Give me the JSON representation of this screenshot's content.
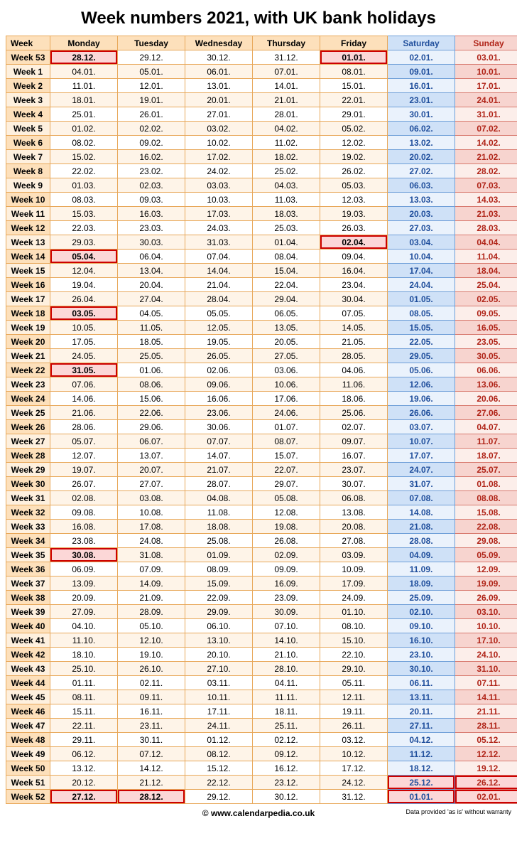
{
  "title": "Week numbers 2021, with UK bank holidays",
  "footer_copy": "© www.calendarpedia.co.uk",
  "footer_disclaimer": "Data provided 'as is' without warranty",
  "colors": {
    "border_default": "#e8a85a",
    "border_sat": "#6f9fd8",
    "border_sun": "#d87a6f",
    "header_weeklabel_bg": "#fde0bb",
    "header_weeklabel_fg": "#000000",
    "header_weekday_bg": "#fde0bb",
    "header_weekday_fg": "#000000",
    "header_sat_bg": "#cfe1f7",
    "header_sat_fg": "#1f4e9c",
    "header_sun_bg": "#f7d4cf",
    "header_sun_fg": "#b02418",
    "row_odd_week_bg": "#fde0bb",
    "row_even_week_bg": "#fef0de",
    "row_odd_day_bg": "#ffffff",
    "row_even_day_bg": "#fef4e8",
    "row_odd_sat_bg": "#eaf2fc",
    "row_even_sat_bg": "#cfe1f7",
    "row_odd_sun_bg": "#fceeea",
    "row_even_sun_bg": "#f7d4cf",
    "weekday_fg": "#000000",
    "sat_fg": "#1f4e9c",
    "sun_fg": "#b02418",
    "holiday_bg": "#fcd7d7",
    "holiday_border": "#cc0000"
  },
  "columns": [
    {
      "key": "week",
      "label": "Week"
    },
    {
      "key": "mon",
      "label": "Monday"
    },
    {
      "key": "tue",
      "label": "Tuesday"
    },
    {
      "key": "wed",
      "label": "Wednesday"
    },
    {
      "key": "thu",
      "label": "Thursday"
    },
    {
      "key": "fri",
      "label": "Friday"
    },
    {
      "key": "sat",
      "label": "Saturday"
    },
    {
      "key": "sun",
      "label": "Sunday"
    }
  ],
  "rows": [
    {
      "week": "Week 53",
      "days": [
        "28.12.",
        "29.12.",
        "30.12.",
        "31.12.",
        "01.01.",
        "02.01.",
        "03.01."
      ],
      "holidays": [
        0,
        4
      ]
    },
    {
      "week": "Week 1",
      "days": [
        "04.01.",
        "05.01.",
        "06.01.",
        "07.01.",
        "08.01.",
        "09.01.",
        "10.01."
      ],
      "holidays": []
    },
    {
      "week": "Week 2",
      "days": [
        "11.01.",
        "12.01.",
        "13.01.",
        "14.01.",
        "15.01.",
        "16.01.",
        "17.01."
      ],
      "holidays": []
    },
    {
      "week": "Week 3",
      "days": [
        "18.01.",
        "19.01.",
        "20.01.",
        "21.01.",
        "22.01.",
        "23.01.",
        "24.01."
      ],
      "holidays": []
    },
    {
      "week": "Week 4",
      "days": [
        "25.01.",
        "26.01.",
        "27.01.",
        "28.01.",
        "29.01.",
        "30.01.",
        "31.01."
      ],
      "holidays": []
    },
    {
      "week": "Week 5",
      "days": [
        "01.02.",
        "02.02.",
        "03.02.",
        "04.02.",
        "05.02.",
        "06.02.",
        "07.02."
      ],
      "holidays": []
    },
    {
      "week": "Week 6",
      "days": [
        "08.02.",
        "09.02.",
        "10.02.",
        "11.02.",
        "12.02.",
        "13.02.",
        "14.02."
      ],
      "holidays": []
    },
    {
      "week": "Week 7",
      "days": [
        "15.02.",
        "16.02.",
        "17.02.",
        "18.02.",
        "19.02.",
        "20.02.",
        "21.02."
      ],
      "holidays": []
    },
    {
      "week": "Week 8",
      "days": [
        "22.02.",
        "23.02.",
        "24.02.",
        "25.02.",
        "26.02.",
        "27.02.",
        "28.02."
      ],
      "holidays": []
    },
    {
      "week": "Week 9",
      "days": [
        "01.03.",
        "02.03.",
        "03.03.",
        "04.03.",
        "05.03.",
        "06.03.",
        "07.03."
      ],
      "holidays": []
    },
    {
      "week": "Week 10",
      "days": [
        "08.03.",
        "09.03.",
        "10.03.",
        "11.03.",
        "12.03.",
        "13.03.",
        "14.03."
      ],
      "holidays": []
    },
    {
      "week": "Week 11",
      "days": [
        "15.03.",
        "16.03.",
        "17.03.",
        "18.03.",
        "19.03.",
        "20.03.",
        "21.03."
      ],
      "holidays": []
    },
    {
      "week": "Week 12",
      "days": [
        "22.03.",
        "23.03.",
        "24.03.",
        "25.03.",
        "26.03.",
        "27.03.",
        "28.03."
      ],
      "holidays": []
    },
    {
      "week": "Week 13",
      "days": [
        "29.03.",
        "30.03.",
        "31.03.",
        "01.04.",
        "02.04.",
        "03.04.",
        "04.04."
      ],
      "holidays": [
        4
      ]
    },
    {
      "week": "Week 14",
      "days": [
        "05.04.",
        "06.04.",
        "07.04.",
        "08.04.",
        "09.04.",
        "10.04.",
        "11.04."
      ],
      "holidays": [
        0
      ]
    },
    {
      "week": "Week 15",
      "days": [
        "12.04.",
        "13.04.",
        "14.04.",
        "15.04.",
        "16.04.",
        "17.04.",
        "18.04."
      ],
      "holidays": []
    },
    {
      "week": "Week 16",
      "days": [
        "19.04.",
        "20.04.",
        "21.04.",
        "22.04.",
        "23.04.",
        "24.04.",
        "25.04."
      ],
      "holidays": []
    },
    {
      "week": "Week 17",
      "days": [
        "26.04.",
        "27.04.",
        "28.04.",
        "29.04.",
        "30.04.",
        "01.05.",
        "02.05."
      ],
      "holidays": []
    },
    {
      "week": "Week 18",
      "days": [
        "03.05.",
        "04.05.",
        "05.05.",
        "06.05.",
        "07.05.",
        "08.05.",
        "09.05."
      ],
      "holidays": [
        0
      ]
    },
    {
      "week": "Week 19",
      "days": [
        "10.05.",
        "11.05.",
        "12.05.",
        "13.05.",
        "14.05.",
        "15.05.",
        "16.05."
      ],
      "holidays": []
    },
    {
      "week": "Week 20",
      "days": [
        "17.05.",
        "18.05.",
        "19.05.",
        "20.05.",
        "21.05.",
        "22.05.",
        "23.05."
      ],
      "holidays": []
    },
    {
      "week": "Week 21",
      "days": [
        "24.05.",
        "25.05.",
        "26.05.",
        "27.05.",
        "28.05.",
        "29.05.",
        "30.05."
      ],
      "holidays": []
    },
    {
      "week": "Week 22",
      "days": [
        "31.05.",
        "01.06.",
        "02.06.",
        "03.06.",
        "04.06.",
        "05.06.",
        "06.06."
      ],
      "holidays": [
        0
      ]
    },
    {
      "week": "Week 23",
      "days": [
        "07.06.",
        "08.06.",
        "09.06.",
        "10.06.",
        "11.06.",
        "12.06.",
        "13.06."
      ],
      "holidays": []
    },
    {
      "week": "Week 24",
      "days": [
        "14.06.",
        "15.06.",
        "16.06.",
        "17.06.",
        "18.06.",
        "19.06.",
        "20.06."
      ],
      "holidays": []
    },
    {
      "week": "Week 25",
      "days": [
        "21.06.",
        "22.06.",
        "23.06.",
        "24.06.",
        "25.06.",
        "26.06.",
        "27.06."
      ],
      "holidays": []
    },
    {
      "week": "Week 26",
      "days": [
        "28.06.",
        "29.06.",
        "30.06.",
        "01.07.",
        "02.07.",
        "03.07.",
        "04.07."
      ],
      "holidays": []
    },
    {
      "week": "Week 27",
      "days": [
        "05.07.",
        "06.07.",
        "07.07.",
        "08.07.",
        "09.07.",
        "10.07.",
        "11.07."
      ],
      "holidays": []
    },
    {
      "week": "Week 28",
      "days": [
        "12.07.",
        "13.07.",
        "14.07.",
        "15.07.",
        "16.07.",
        "17.07.",
        "18.07."
      ],
      "holidays": []
    },
    {
      "week": "Week 29",
      "days": [
        "19.07.",
        "20.07.",
        "21.07.",
        "22.07.",
        "23.07.",
        "24.07.",
        "25.07."
      ],
      "holidays": []
    },
    {
      "week": "Week 30",
      "days": [
        "26.07.",
        "27.07.",
        "28.07.",
        "29.07.",
        "30.07.",
        "31.07.",
        "01.08."
      ],
      "holidays": []
    },
    {
      "week": "Week 31",
      "days": [
        "02.08.",
        "03.08.",
        "04.08.",
        "05.08.",
        "06.08.",
        "07.08.",
        "08.08."
      ],
      "holidays": []
    },
    {
      "week": "Week 32",
      "days": [
        "09.08.",
        "10.08.",
        "11.08.",
        "12.08.",
        "13.08.",
        "14.08.",
        "15.08."
      ],
      "holidays": []
    },
    {
      "week": "Week 33",
      "days": [
        "16.08.",
        "17.08.",
        "18.08.",
        "19.08.",
        "20.08.",
        "21.08.",
        "22.08."
      ],
      "holidays": []
    },
    {
      "week": "Week 34",
      "days": [
        "23.08.",
        "24.08.",
        "25.08.",
        "26.08.",
        "27.08.",
        "28.08.",
        "29.08."
      ],
      "holidays": []
    },
    {
      "week": "Week 35",
      "days": [
        "30.08.",
        "31.08.",
        "01.09.",
        "02.09.",
        "03.09.",
        "04.09.",
        "05.09."
      ],
      "holidays": [
        0
      ]
    },
    {
      "week": "Week 36",
      "days": [
        "06.09.",
        "07.09.",
        "08.09.",
        "09.09.",
        "10.09.",
        "11.09.",
        "12.09."
      ],
      "holidays": []
    },
    {
      "week": "Week 37",
      "days": [
        "13.09.",
        "14.09.",
        "15.09.",
        "16.09.",
        "17.09.",
        "18.09.",
        "19.09."
      ],
      "holidays": []
    },
    {
      "week": "Week 38",
      "days": [
        "20.09.",
        "21.09.",
        "22.09.",
        "23.09.",
        "24.09.",
        "25.09.",
        "26.09."
      ],
      "holidays": []
    },
    {
      "week": "Week 39",
      "days": [
        "27.09.",
        "28.09.",
        "29.09.",
        "30.09.",
        "01.10.",
        "02.10.",
        "03.10."
      ],
      "holidays": []
    },
    {
      "week": "Week 40",
      "days": [
        "04.10.",
        "05.10.",
        "06.10.",
        "07.10.",
        "08.10.",
        "09.10.",
        "10.10."
      ],
      "holidays": []
    },
    {
      "week": "Week 41",
      "days": [
        "11.10.",
        "12.10.",
        "13.10.",
        "14.10.",
        "15.10.",
        "16.10.",
        "17.10."
      ],
      "holidays": []
    },
    {
      "week": "Week 42",
      "days": [
        "18.10.",
        "19.10.",
        "20.10.",
        "21.10.",
        "22.10.",
        "23.10.",
        "24.10."
      ],
      "holidays": []
    },
    {
      "week": "Week 43",
      "days": [
        "25.10.",
        "26.10.",
        "27.10.",
        "28.10.",
        "29.10.",
        "30.10.",
        "31.10."
      ],
      "holidays": []
    },
    {
      "week": "Week 44",
      "days": [
        "01.11.",
        "02.11.",
        "03.11.",
        "04.11.",
        "05.11.",
        "06.11.",
        "07.11."
      ],
      "holidays": []
    },
    {
      "week": "Week 45",
      "days": [
        "08.11.",
        "09.11.",
        "10.11.",
        "11.11.",
        "12.11.",
        "13.11.",
        "14.11."
      ],
      "holidays": []
    },
    {
      "week": "Week 46",
      "days": [
        "15.11.",
        "16.11.",
        "17.11.",
        "18.11.",
        "19.11.",
        "20.11.",
        "21.11."
      ],
      "holidays": []
    },
    {
      "week": "Week 47",
      "days": [
        "22.11.",
        "23.11.",
        "24.11.",
        "25.11.",
        "26.11.",
        "27.11.",
        "28.11."
      ],
      "holidays": []
    },
    {
      "week": "Week 48",
      "days": [
        "29.11.",
        "30.11.",
        "01.12.",
        "02.12.",
        "03.12.",
        "04.12.",
        "05.12."
      ],
      "holidays": []
    },
    {
      "week": "Week 49",
      "days": [
        "06.12.",
        "07.12.",
        "08.12.",
        "09.12.",
        "10.12.",
        "11.12.",
        "12.12."
      ],
      "holidays": []
    },
    {
      "week": "Week 50",
      "days": [
        "13.12.",
        "14.12.",
        "15.12.",
        "16.12.",
        "17.12.",
        "18.12.",
        "19.12."
      ],
      "holidays": []
    },
    {
      "week": "Week 51",
      "days": [
        "20.12.",
        "21.12.",
        "22.12.",
        "23.12.",
        "24.12.",
        "25.12.",
        "26.12."
      ],
      "holidays": [
        5,
        6
      ]
    },
    {
      "week": "Week 52",
      "days": [
        "27.12.",
        "28.12.",
        "29.12.",
        "30.12.",
        "31.12.",
        "01.01.",
        "02.01."
      ],
      "holidays": [
        0,
        1,
        5,
        6
      ]
    }
  ]
}
